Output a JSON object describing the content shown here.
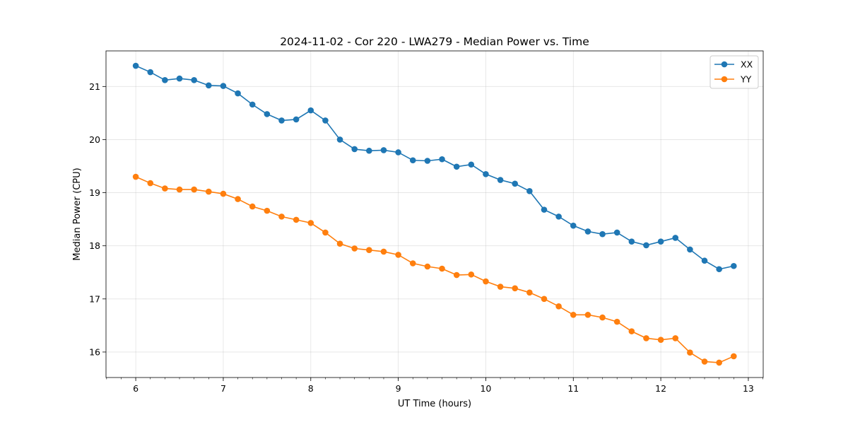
{
  "chart_data": {
    "type": "line",
    "title": "2024-11-02 - Cor 220 - LWA279 - Median Power vs. Time",
    "xlabel": "UT Time (hours)",
    "ylabel": "Median Power (CPU)",
    "xlim": [
      5.66,
      13.17
    ],
    "ylim": [
      15.52,
      21.67
    ],
    "xticks": [
      6,
      7,
      8,
      9,
      10,
      11,
      12,
      13
    ],
    "yticks": [
      16,
      17,
      18,
      19,
      20,
      21
    ],
    "grid": true,
    "legend_position": "top-right",
    "x": [
      6.0,
      6.1667,
      6.3333,
      6.5,
      6.6667,
      6.8333,
      7.0,
      7.1667,
      7.3333,
      7.5,
      7.6667,
      7.8333,
      8.0,
      8.1667,
      8.3333,
      8.5,
      8.6667,
      8.8333,
      9.0,
      9.1667,
      9.3333,
      9.5,
      9.6667,
      9.8333,
      10.0,
      10.1667,
      10.3333,
      10.5,
      10.6667,
      10.8333,
      11.0,
      11.1667,
      11.3333,
      11.5,
      11.6667,
      11.8333,
      12.0,
      12.1667,
      12.3333,
      12.5,
      12.6667,
      12.8333
    ],
    "series": [
      {
        "name": "XX",
        "color": "#1f77b4",
        "values": [
          21.39,
          21.27,
          21.12,
          21.15,
          21.12,
          21.02,
          21.01,
          20.87,
          20.66,
          20.48,
          20.36,
          20.38,
          20.55,
          20.36,
          20.0,
          19.82,
          19.79,
          19.8,
          19.76,
          19.61,
          19.6,
          19.63,
          19.49,
          19.53,
          19.35,
          19.24,
          19.17,
          19.03,
          18.68,
          18.55,
          18.38,
          18.27,
          18.22,
          18.25,
          18.08,
          18.01,
          18.08,
          18.15,
          17.93,
          17.72,
          17.56,
          17.62
        ]
      },
      {
        "name": "YY",
        "color": "#ff7f0e",
        "values": [
          19.3,
          19.18,
          19.08,
          19.06,
          19.06,
          19.02,
          18.98,
          18.88,
          18.74,
          18.66,
          18.55,
          18.49,
          18.43,
          18.25,
          18.04,
          17.95,
          17.92,
          17.89,
          17.83,
          17.67,
          17.61,
          17.57,
          17.45,
          17.46,
          17.33,
          17.23,
          17.2,
          17.12,
          17.0,
          16.86,
          16.7,
          16.7,
          16.65,
          16.57,
          16.39,
          16.26,
          16.23,
          16.26,
          15.99,
          15.82,
          15.8,
          15.92
        ]
      }
    ]
  }
}
